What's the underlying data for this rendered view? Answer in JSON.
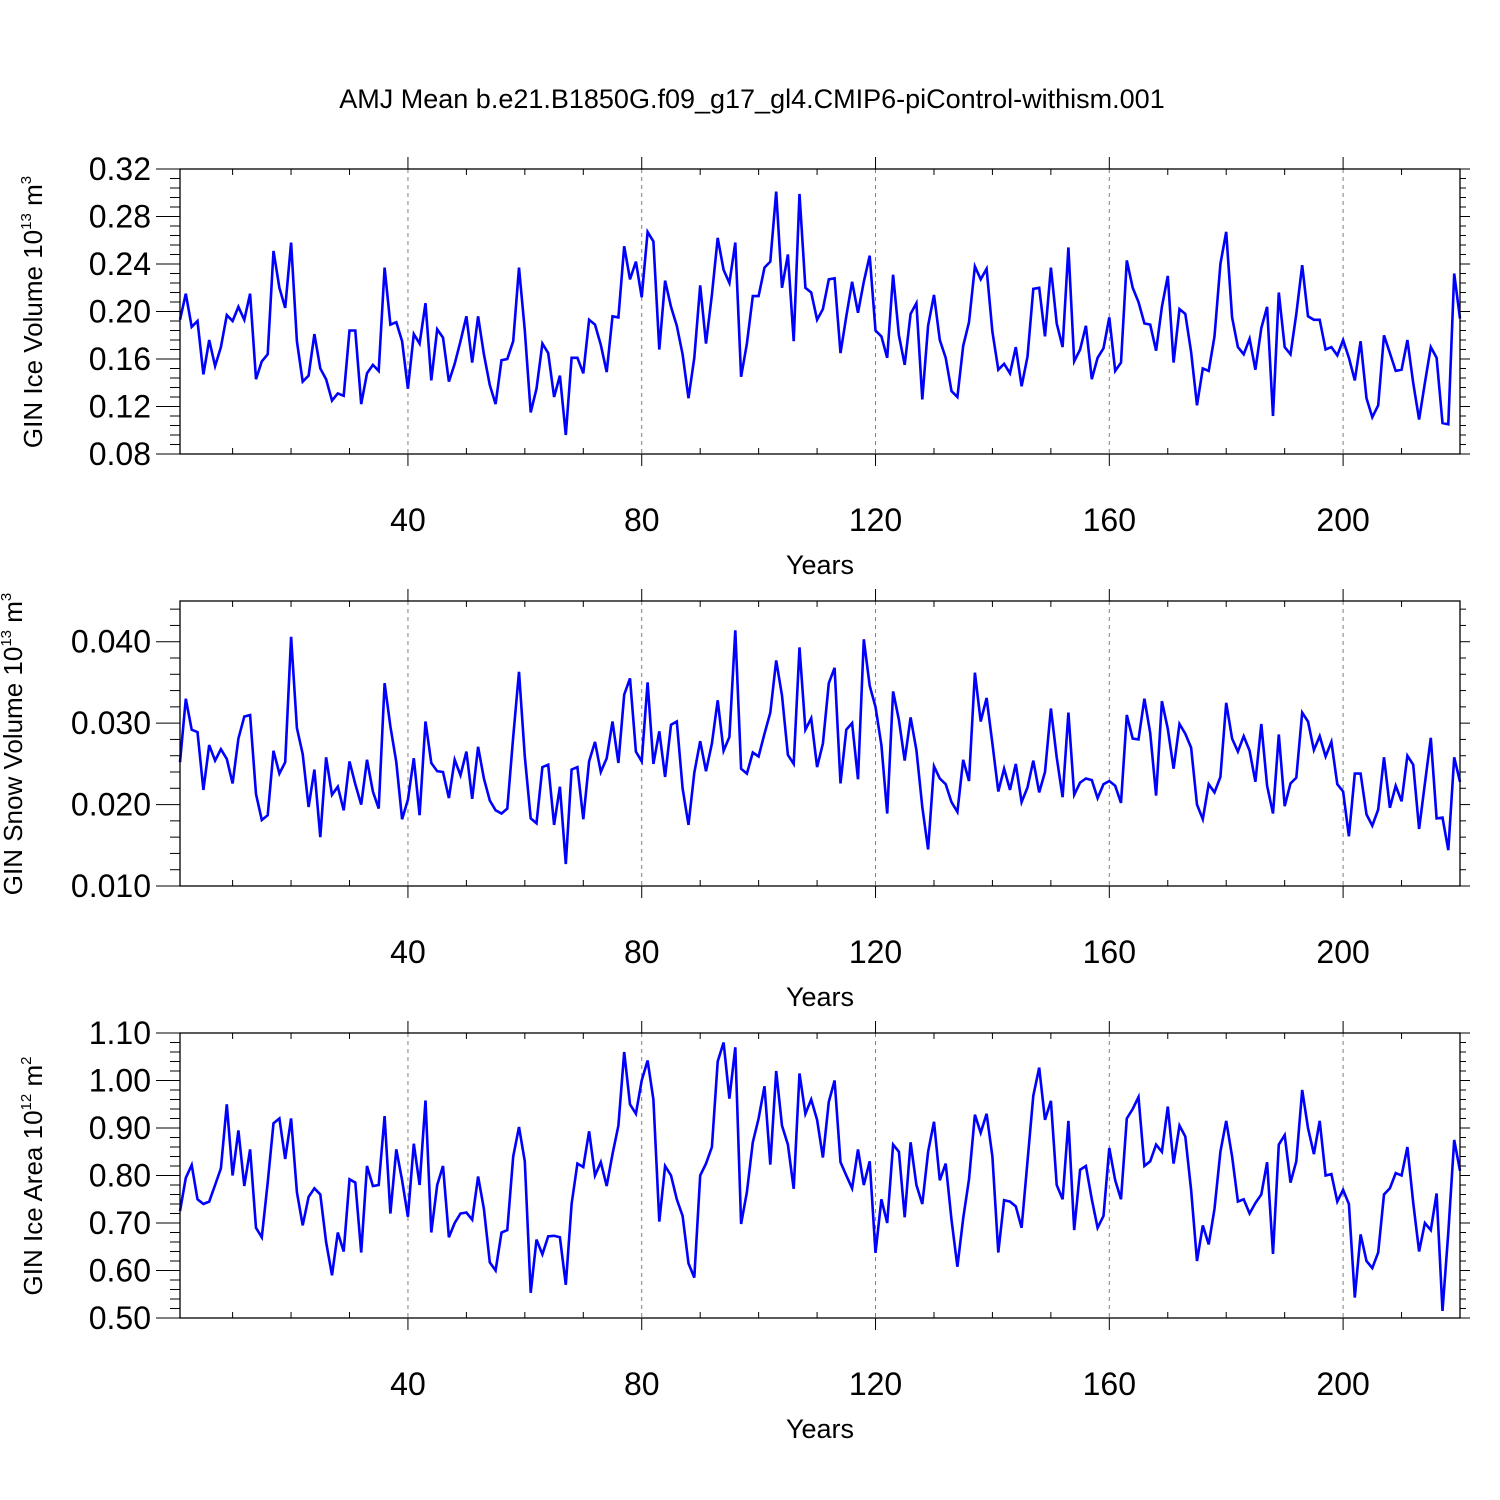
{
  "figure": {
    "title": "AMJ Mean b.e21.B1850G.f09_g17_gl4.CMIP6-piControl-withism.001",
    "line_color": "#0000ff",
    "grid_color": "#7f7f7f"
  },
  "chart_data": [
    {
      "type": "line",
      "xlabel": "Years",
      "ylabel": {
        "prefix": "GIN Ice Volume 10",
        "exponent": "13",
        "unit": " m",
        "unit_exponent": "3"
      },
      "xlim": [
        1,
        220
      ],
      "ylim": [
        0.08,
        0.32
      ],
      "xticks": [
        40,
        80,
        120,
        160,
        200
      ],
      "xtick_labels": [
        "40",
        "80",
        "120",
        "160",
        "200"
      ],
      "yticks": [
        0.08,
        0.12,
        0.16,
        0.2,
        0.24,
        0.28,
        0.32
      ],
      "ytick_labels": [
        "0.08",
        "0.12",
        "0.16",
        "0.20",
        "0.24",
        "0.28",
        "0.32"
      ],
      "grid": "vertical dashed at major x ticks",
      "series": [
        {
          "x_start": 1,
          "values": [
            0.193,
            0.215,
            0.187,
            0.192,
            0.147,
            0.176,
            0.154,
            0.17,
            0.197,
            0.192,
            0.204,
            0.193,
            0.215,
            0.143,
            0.158,
            0.164,
            0.251,
            0.22,
            0.203,
            0.258,
            0.175,
            0.141,
            0.146,
            0.181,
            0.152,
            0.143,
            0.125,
            0.131,
            0.129,
            0.184,
            0.184,
            0.122,
            0.148,
            0.155,
            0.15,
            0.237,
            0.189,
            0.191,
            0.175,
            0.135,
            0.181,
            0.173,
            0.207,
            0.142,
            0.185,
            0.178,
            0.141,
            0.156,
            0.175,
            0.196,
            0.157,
            0.196,
            0.164,
            0.138,
            0.122,
            0.159,
            0.16,
            0.175,
            0.237,
            0.184,
            0.115,
            0.135,
            0.173,
            0.165,
            0.128,
            0.146,
            0.096,
            0.161,
            0.161,
            0.148,
            0.193,
            0.189,
            0.172,
            0.149,
            0.196,
            0.195,
            0.255,
            0.227,
            0.242,
            0.212,
            0.267,
            0.259,
            0.168,
            0.226,
            0.204,
            0.188,
            0.164,
            0.127,
            0.161,
            0.222,
            0.173,
            0.214,
            0.262,
            0.235,
            0.224,
            0.258,
            0.145,
            0.173,
            0.213,
            0.213,
            0.237,
            0.242,
            0.301,
            0.22,
            0.248,
            0.175,
            0.299,
            0.22,
            0.216,
            0.193,
            0.202,
            0.227,
            0.228,
            0.165,
            0.196,
            0.225,
            0.199,
            0.225,
            0.247,
            0.184,
            0.179,
            0.161,
            0.231,
            0.18,
            0.155,
            0.198,
            0.207,
            0.126,
            0.188,
            0.214,
            0.176,
            0.161,
            0.133,
            0.128,
            0.171,
            0.191,
            0.238,
            0.227,
            0.236,
            0.183,
            0.151,
            0.156,
            0.148,
            0.17,
            0.137,
            0.162,
            0.219,
            0.22,
            0.179,
            0.237,
            0.19,
            0.17,
            0.254,
            0.158,
            0.168,
            0.188,
            0.143,
            0.161,
            0.169,
            0.195,
            0.15,
            0.157,
            0.243,
            0.22,
            0.208,
            0.19,
            0.189,
            0.167,
            0.204,
            0.23,
            0.157,
            0.202,
            0.198,
            0.166,
            0.121,
            0.152,
            0.15,
            0.179,
            0.24,
            0.267,
            0.195,
            0.17,
            0.164,
            0.177,
            0.151,
            0.186,
            0.204,
            0.112,
            0.216,
            0.17,
            0.164,
            0.198,
            0.239,
            0.196,
            0.193,
            0.193,
            0.168,
            0.17,
            0.163,
            0.176,
            0.161,
            0.142,
            0.175,
            0.127,
            0.111,
            0.121,
            0.18,
            0.165,
            0.15,
            0.151,
            0.176,
            0.14,
            0.109,
            0.14,
            0.17,
            0.161,
            0.106,
            0.105,
            0.232,
            0.194
          ]
        }
      ]
    },
    {
      "type": "line",
      "xlabel": "Years",
      "ylabel": {
        "prefix": "GIN Snow Volume 10",
        "exponent": "13",
        "unit": " m",
        "unit_exponent": "3"
      },
      "xlim": [
        1,
        220
      ],
      "ylim": [
        0.01,
        0.045
      ],
      "xticks": [
        40,
        80,
        120,
        160,
        200
      ],
      "xtick_labels": [
        "40",
        "80",
        "120",
        "160",
        "200"
      ],
      "yticks": [
        0.01,
        0.02,
        0.03,
        0.04
      ],
      "ytick_labels": [
        "0.010",
        "0.020",
        "0.030",
        "0.040"
      ],
      "grid": "vertical dashed at major x ticks",
      "series": [
        {
          "x_start": 1,
          "values": [
            0.0252,
            0.033,
            0.0292,
            0.0289,
            0.0218,
            0.0273,
            0.0254,
            0.0268,
            0.0256,
            0.0226,
            0.0281,
            0.0308,
            0.031,
            0.0213,
            0.0181,
            0.0187,
            0.0266,
            0.0238,
            0.0252,
            0.0406,
            0.0294,
            0.0262,
            0.0197,
            0.0243,
            0.016,
            0.0258,
            0.0212,
            0.0222,
            0.0193,
            0.0253,
            0.0225,
            0.02,
            0.0255,
            0.0216,
            0.0195,
            0.0349,
            0.0296,
            0.0252,
            0.0182,
            0.0206,
            0.0257,
            0.0187,
            0.0302,
            0.0251,
            0.0241,
            0.024,
            0.0208,
            0.0255,
            0.0236,
            0.0265,
            0.0207,
            0.0271,
            0.0232,
            0.0205,
            0.0193,
            0.0189,
            0.0195,
            0.0283,
            0.0363,
            0.0259,
            0.0183,
            0.0177,
            0.0246,
            0.0249,
            0.0175,
            0.0222,
            0.0127,
            0.0243,
            0.0246,
            0.0182,
            0.0253,
            0.0277,
            0.024,
            0.0257,
            0.0302,
            0.0251,
            0.0335,
            0.0355,
            0.0265,
            0.0253,
            0.035,
            0.025,
            0.029,
            0.0234,
            0.0298,
            0.0302,
            0.022,
            0.0175,
            0.0239,
            0.0278,
            0.0241,
            0.0275,
            0.0328,
            0.0266,
            0.0283,
            0.0414,
            0.0244,
            0.0238,
            0.0264,
            0.0259,
            0.0287,
            0.0313,
            0.0377,
            0.0334,
            0.0261,
            0.025,
            0.0393,
            0.0292,
            0.0306,
            0.0246,
            0.0275,
            0.0349,
            0.0368,
            0.0226,
            0.0292,
            0.03,
            0.0231,
            0.0403,
            0.0346,
            0.032,
            0.0273,
            0.0189,
            0.0339,
            0.0304,
            0.0254,
            0.0307,
            0.0267,
            0.0197,
            0.0145,
            0.0247,
            0.0232,
            0.0225,
            0.0203,
            0.0191,
            0.0255,
            0.0229,
            0.0362,
            0.0302,
            0.0331,
            0.0275,
            0.0216,
            0.0244,
            0.0218,
            0.025,
            0.0203,
            0.0221,
            0.0254,
            0.0215,
            0.024,
            0.0318,
            0.0258,
            0.0209,
            0.0313,
            0.0212,
            0.0227,
            0.0232,
            0.023,
            0.0208,
            0.0225,
            0.0229,
            0.0223,
            0.0202,
            0.031,
            0.0281,
            0.028,
            0.033,
            0.0288,
            0.0211,
            0.0327,
            0.0293,
            0.0244,
            0.0299,
            0.0287,
            0.027,
            0.02,
            0.0182,
            0.0225,
            0.0215,
            0.0234,
            0.0325,
            0.0281,
            0.0265,
            0.0284,
            0.0266,
            0.0228,
            0.0299,
            0.0223,
            0.0189,
            0.0286,
            0.0198,
            0.0226,
            0.0233,
            0.0313,
            0.0302,
            0.0267,
            0.0284,
            0.0259,
            0.0277,
            0.0225,
            0.0216,
            0.0161,
            0.0238,
            0.0238,
            0.0188,
            0.0174,
            0.0194,
            0.0258,
            0.0196,
            0.0223,
            0.0204,
            0.026,
            0.0249,
            0.017,
            0.0226,
            0.0282,
            0.0183,
            0.0184,
            0.0144,
            0.0258,
            0.0228
          ]
        }
      ]
    },
    {
      "type": "line",
      "xlabel": "Years",
      "ylabel": {
        "prefix": "GIN Ice Area 10",
        "exponent": "12",
        "unit": " m",
        "unit_exponent": "2"
      },
      "xlim": [
        1,
        220
      ],
      "ylim": [
        0.5,
        1.1
      ],
      "xticks": [
        40,
        80,
        120,
        160,
        200
      ],
      "xtick_labels": [
        "40",
        "80",
        "120",
        "160",
        "200"
      ],
      "yticks": [
        0.5,
        0.6,
        0.7,
        0.8,
        0.9,
        1.0,
        1.1
      ],
      "ytick_labels": [
        "0.50",
        "0.60",
        "0.70",
        "0.80",
        "0.90",
        "1.00",
        "1.10"
      ],
      "grid": "vertical dashed at major x ticks",
      "series": [
        {
          "x_start": 1,
          "values": [
            0.725,
            0.795,
            0.822,
            0.75,
            0.74,
            0.745,
            0.78,
            0.815,
            0.95,
            0.8,
            0.895,
            0.778,
            0.855,
            0.69,
            0.67,
            0.785,
            0.91,
            0.92,
            0.835,
            0.92,
            0.765,
            0.695,
            0.755,
            0.773,
            0.76,
            0.66,
            0.59,
            0.68,
            0.64,
            0.792,
            0.785,
            0.638,
            0.82,
            0.778,
            0.78,
            0.925,
            0.72,
            0.855,
            0.79,
            0.713,
            0.867,
            0.78,
            0.958,
            0.68,
            0.78,
            0.82,
            0.67,
            0.7,
            0.72,
            0.722,
            0.707,
            0.798,
            0.73,
            0.617,
            0.6,
            0.68,
            0.685,
            0.84,
            0.902,
            0.83,
            0.553,
            0.665,
            0.634,
            0.672,
            0.673,
            0.67,
            0.57,
            0.74,
            0.825,
            0.818,
            0.893,
            0.8,
            0.828,
            0.778,
            0.845,
            0.905,
            1.06,
            0.95,
            0.93,
            1.0,
            1.042,
            0.96,
            0.703,
            0.82,
            0.8,
            0.75,
            0.715,
            0.615,
            0.585,
            0.8,
            0.825,
            0.86,
            1.04,
            1.08,
            0.962,
            1.07,
            0.698,
            0.765,
            0.87,
            0.92,
            0.988,
            0.823,
            1.02,
            0.905,
            0.865,
            0.772,
            1.015,
            0.93,
            0.96,
            0.917,
            0.838,
            0.955,
            1.0,
            0.828,
            0.8,
            0.773,
            0.855,
            0.78,
            0.83,
            0.637,
            0.75,
            0.7,
            0.865,
            0.85,
            0.712,
            0.87,
            0.78,
            0.74,
            0.85,
            0.913,
            0.79,
            0.825,
            0.707,
            0.608,
            0.71,
            0.792,
            0.928,
            0.89,
            0.93,
            0.84,
            0.638,
            0.748,
            0.745,
            0.735,
            0.69,
            0.83,
            0.968,
            1.027,
            0.917,
            0.957,
            0.78,
            0.75,
            0.915,
            0.685,
            0.812,
            0.82,
            0.75,
            0.69,
            0.715,
            0.858,
            0.79,
            0.75,
            0.92,
            0.94,
            0.965,
            0.82,
            0.83,
            0.865,
            0.85,
            0.945,
            0.825,
            0.905,
            0.882,
            0.77,
            0.62,
            0.695,
            0.655,
            0.73,
            0.85,
            0.915,
            0.84,
            0.745,
            0.75,
            0.72,
            0.742,
            0.76,
            0.828,
            0.635,
            0.865,
            0.885,
            0.785,
            0.83,
            0.98,
            0.9,
            0.845,
            0.915,
            0.8,
            0.803,
            0.745,
            0.77,
            0.74,
            0.543,
            0.676,
            0.62,
            0.605,
            0.638,
            0.76,
            0.773,
            0.805,
            0.8,
            0.86,
            0.743,
            0.64,
            0.7,
            0.685,
            0.762,
            0.515,
            0.68,
            0.875,
            0.81
          ]
        }
      ]
    }
  ]
}
